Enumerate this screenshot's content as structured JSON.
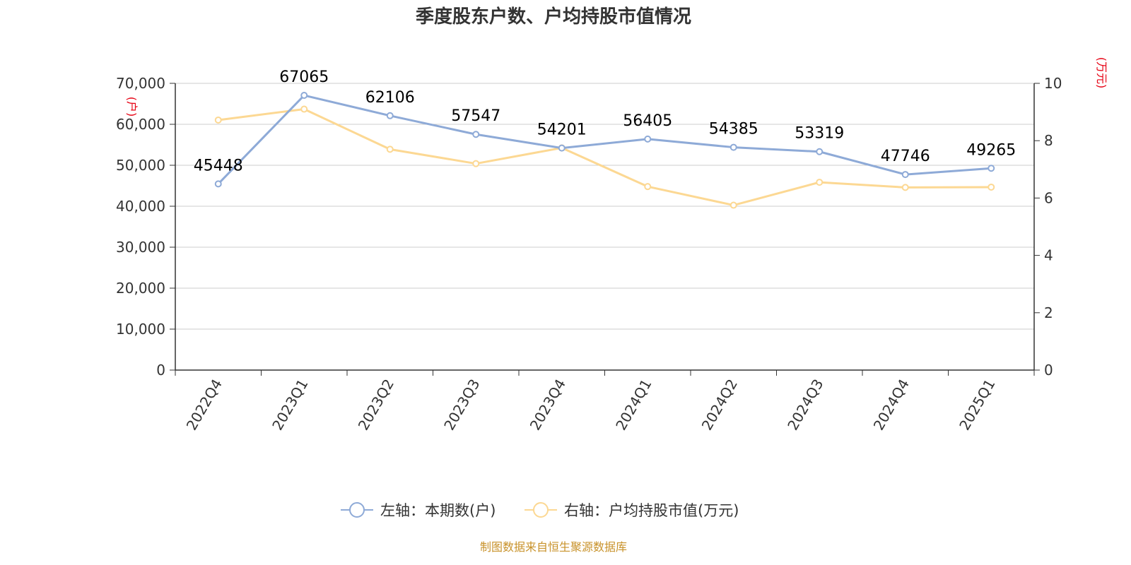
{
  "chart_data": {
    "type": "line",
    "title": "季度股东户数、户均持股市值情况",
    "categories": [
      "2022Q4",
      "2023Q1",
      "2023Q2",
      "2023Q3",
      "2023Q4",
      "2024Q1",
      "2024Q2",
      "2024Q3",
      "2024Q4",
      "2025Q1"
    ],
    "y_left": {
      "unit": "(户)",
      "ylim": [
        0,
        70000
      ],
      "ticks": [
        0,
        10000,
        20000,
        30000,
        40000,
        50000,
        60000,
        70000
      ],
      "tick_labels": [
        "0",
        "10,000",
        "20,000",
        "30,000",
        "40,000",
        "50,000",
        "60,000",
        "70,000"
      ]
    },
    "y_right": {
      "unit": "(万元)",
      "ylim": [
        0,
        10
      ],
      "ticks": [
        0,
        2,
        4,
        6,
        8,
        10
      ],
      "tick_labels": [
        "0",
        "2",
        "4",
        "6",
        "8",
        "10"
      ]
    },
    "series": [
      {
        "name": "左轴：本期数(户)",
        "axis": "left",
        "color": "#8eaad7",
        "values": [
          45448,
          67065,
          62106,
          57547,
          54201,
          56405,
          54385,
          53319,
          47746,
          49265
        ],
        "labels": [
          "45448",
          "67065",
          "62106",
          "57547",
          "54201",
          "56405",
          "54385",
          "53319",
          "47746",
          "49265"
        ]
      },
      {
        "name": "右轴：户均持股市值(万元)",
        "axis": "right",
        "color": "#fcd893",
        "values": [
          8.72,
          9.1,
          7.7,
          7.2,
          7.75,
          6.4,
          5.75,
          6.55,
          6.37,
          6.38
        ]
      }
    ],
    "grid": true,
    "legend_position": "bottom-center",
    "source": "制图数据来自恒生聚源数据库"
  }
}
